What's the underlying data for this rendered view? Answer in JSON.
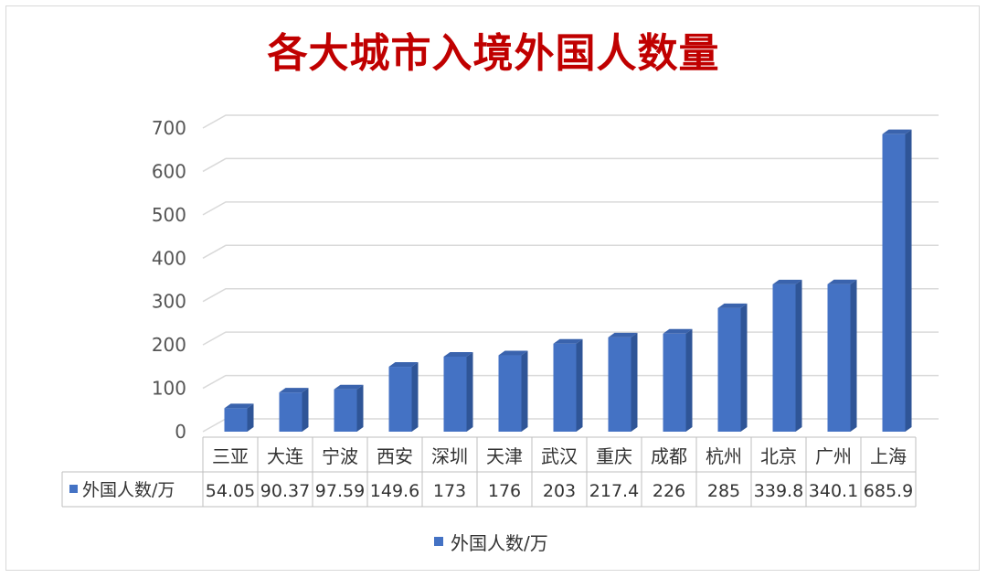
{
  "chart_data": {
    "type": "bar",
    "title": "各大城市入境外国人数量",
    "categories": [
      "三亚",
      "大连",
      "宁波",
      "西安",
      "深圳",
      "天津",
      "武汉",
      "重庆",
      "成都",
      "杭州",
      "北京",
      "广州",
      "上海"
    ],
    "series": [
      {
        "name": "外国人数/万",
        "values": [
          54.05,
          90.37,
          97.59,
          149.6,
          173,
          176,
          203,
          217.4,
          226,
          285,
          339.8,
          340.1,
          685.9
        ],
        "labels": [
          "54.05",
          "90.37",
          "97.59",
          "149.6",
          "173",
          "176",
          "203",
          "217.4",
          "226",
          "285",
          "339.8",
          "340.1",
          "685.9"
        ]
      }
    ],
    "ylim": [
      0,
      700
    ],
    "yticks": [
      0,
      100,
      200,
      300,
      400,
      500,
      600,
      700
    ],
    "grid": true,
    "legend_position": "bottom",
    "data_table": true,
    "colors": {
      "bar": "#4472c4",
      "bar_side": "#2f5597",
      "bar_top": "#3a63ad",
      "grid": "#d9d9d9",
      "title": "#c00000"
    }
  }
}
